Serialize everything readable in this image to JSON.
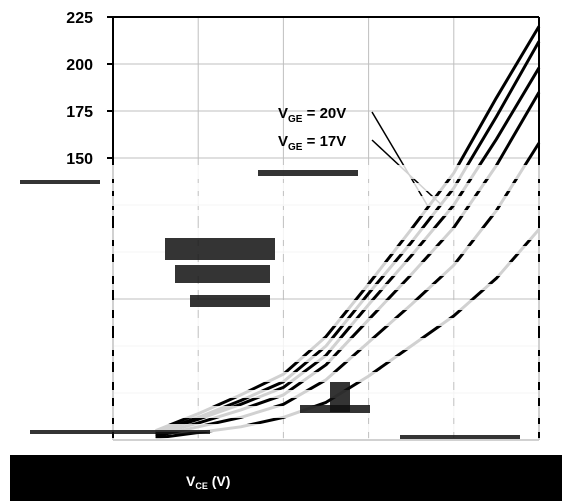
{
  "chart_data": {
    "type": "line",
    "title": "",
    "xlabel": "V",
    "xlabel_sub": "CE",
    "xlabel_unit": " (V)",
    "ylabel": "",
    "ylim": [
      0,
      225
    ],
    "xlim": [
      0,
      5
    ],
    "y_ticks": [
      {
        "value": 225,
        "label": "225"
      },
      {
        "value": 200,
        "label": "200"
      },
      {
        "value": 175,
        "label": "175"
      },
      {
        "value": 150,
        "label": "150"
      }
    ],
    "x_grid": [
      0,
      1,
      2,
      3,
      4,
      5
    ],
    "y_grid": [
      0,
      25,
      50,
      75,
      100,
      125,
      150,
      175,
      200,
      225
    ],
    "grid": true,
    "legend": "none",
    "series": [
      {
        "id": "s20",
        "label_main": "V",
        "label_sub": "GE",
        "label_value": " = 20V",
        "x": [
          0.5,
          1.0,
          1.5,
          2.0,
          2.5,
          3.0,
          3.5,
          4.0,
          4.5,
          5.0
        ],
        "y": [
          5,
          14,
          24,
          35,
          55,
          83,
          112,
          142,
          182,
          220
        ]
      },
      {
        "id": "s17",
        "label_main": "V",
        "label_sub": "GE",
        "label_value": " = 17V",
        "x": [
          0.5,
          1.0,
          1.5,
          2.0,
          2.5,
          3.0,
          3.5,
          4.0,
          4.5,
          5.0
        ],
        "y": [
          4,
          12,
          21,
          31,
          50,
          78,
          105,
          134,
          172,
          212
        ]
      },
      {
        "id": "s15",
        "x": [
          0.5,
          1.0,
          1.5,
          2.0,
          2.5,
          3.0,
          3.5,
          4.0,
          4.5,
          5.0
        ],
        "y": [
          4,
          11,
          19,
          28,
          45,
          72,
          98,
          125,
          160,
          198
        ]
      },
      {
        "id": "s13",
        "x": [
          0.5,
          1.0,
          1.5,
          2.0,
          2.5,
          3.0,
          3.5,
          4.0,
          4.5,
          5.0
        ],
        "y": [
          3,
          9,
          16,
          24,
          40,
          64,
          88,
          113,
          146,
          185
        ]
      },
      {
        "id": "s11",
        "x": [
          0.5,
          1.0,
          1.5,
          2.0,
          2.5,
          3.0,
          3.5,
          4.0,
          4.5,
          5.0
        ],
        "y": [
          2,
          7,
          12,
          19,
          32,
          52,
          72,
          93,
          122,
          158
        ]
      },
      {
        "id": "s9",
        "x": [
          0.5,
          1.0,
          1.5,
          2.0,
          2.5,
          3.0,
          3.5,
          4.0,
          4.5,
          5.0
        ],
        "y": [
          1,
          4,
          7,
          12,
          20,
          34,
          50,
          66,
          86,
          112
        ]
      }
    ]
  }
}
